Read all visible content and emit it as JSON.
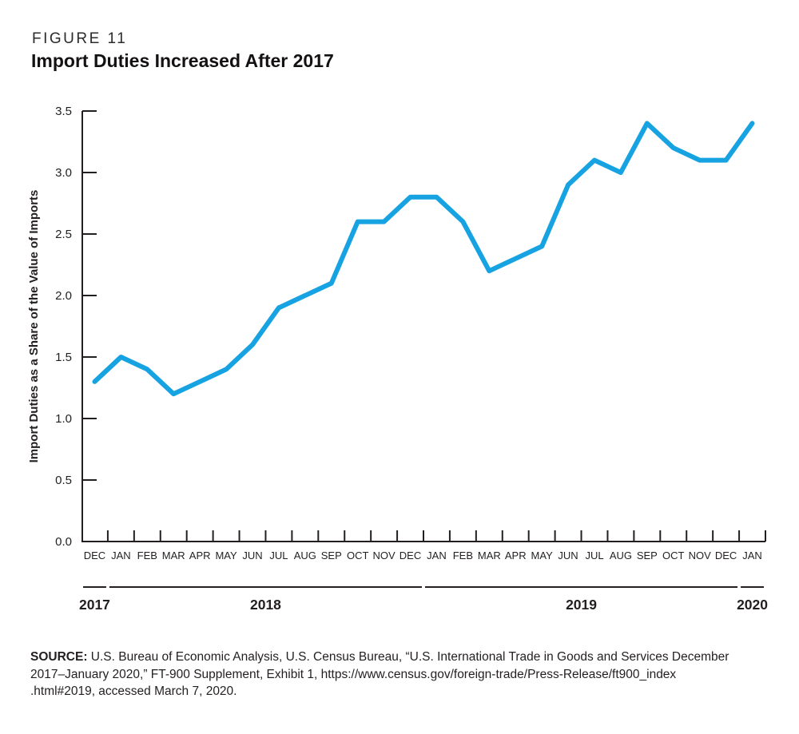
{
  "figure": {
    "label": "FIGURE 11",
    "title": "Import Duties Increased After 2017"
  },
  "chart_data": {
    "type": "line",
    "title": "Import Duties Increased After 2017",
    "xlabel": "",
    "ylabel": "Import Duties as a Share of the Value of Imports",
    "ylim": [
      0.0,
      3.5
    ],
    "ytick_labels": [
      "0.0",
      "0.5",
      "1.0",
      "1.5",
      "2.0",
      "2.5",
      "3.0",
      "3.5"
    ],
    "grid": false,
    "legend_position": "none",
    "line_color": "#17a3e1",
    "axis_color": "#231f20",
    "categories": [
      "DEC",
      "JAN",
      "FEB",
      "MAR",
      "APR",
      "MAY",
      "JUN",
      "JUL",
      "AUG",
      "SEP",
      "OCT",
      "NOV",
      "DEC",
      "JAN",
      "FEB",
      "MAR",
      "APR",
      "MAY",
      "JUN",
      "JUL",
      "AUG",
      "SEP",
      "OCT",
      "NOV",
      "DEC",
      "JAN"
    ],
    "values": [
      1.3,
      1.5,
      1.4,
      1.2,
      1.3,
      1.4,
      1.6,
      1.9,
      2.0,
      2.1,
      2.6,
      2.6,
      2.8,
      2.8,
      2.6,
      2.2,
      2.3,
      2.4,
      2.9,
      3.1,
      3.0,
      3.4,
      3.2,
      3.1,
      3.1,
      3.4
    ],
    "year_groups": [
      {
        "label": "2017",
        "months": 1
      },
      {
        "label": "2018",
        "months": 12
      },
      {
        "label": "2019",
        "months": 12
      },
      {
        "label": "2020",
        "months": 1
      }
    ]
  },
  "source": {
    "label": "SOURCE:",
    "line1_rest": "U.S. Bureau of Economic Analysis, U.S. Census Bureau, “U.S. International Trade in Goods and Services December",
    "line2": "2017–January 2020,” FT-900 Supplement, Exhibit 1, https://www.census.gov/foreign-trade/Press-Release/ft900_index",
    "line3": ".html#2019, accessed March 7, 2020."
  }
}
